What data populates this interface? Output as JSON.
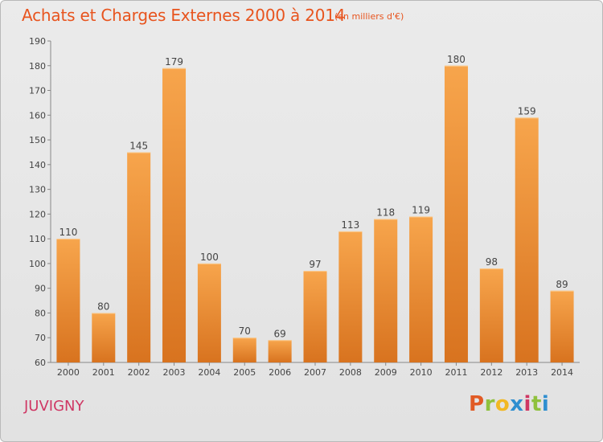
{
  "header": {
    "title": "Achats et Charges Externes 2000 à 2014",
    "unit": "(en milliers d'€)"
  },
  "footer": {
    "place": "JUVIGNY",
    "logo": "Proxiti",
    "logo_colors": [
      "#e15a24",
      "#8fc13d",
      "#f2b823",
      "#2f8fd0",
      "#cf3764",
      "#8fc13d",
      "#2f8fd0"
    ]
  },
  "colors": {
    "title": "#e8541e",
    "bar_light": "#f7a54c",
    "bar_dark": "#d8731f",
    "place": "#cf3764"
  },
  "chart_data": {
    "type": "bar",
    "categories": [
      "2000",
      "2001",
      "2002",
      "2003",
      "2004",
      "2005",
      "2006",
      "2007",
      "2008",
      "2009",
      "2010",
      "2011",
      "2012",
      "2013",
      "2014"
    ],
    "values": [
      110,
      80,
      145,
      179,
      100,
      70,
      69,
      97,
      113,
      118,
      119,
      180,
      98,
      159,
      89
    ],
    "ylim": [
      60,
      190
    ],
    "yticks": [
      60,
      70,
      80,
      90,
      100,
      110,
      120,
      130,
      140,
      150,
      160,
      170,
      180,
      190
    ],
    "grid": false
  }
}
